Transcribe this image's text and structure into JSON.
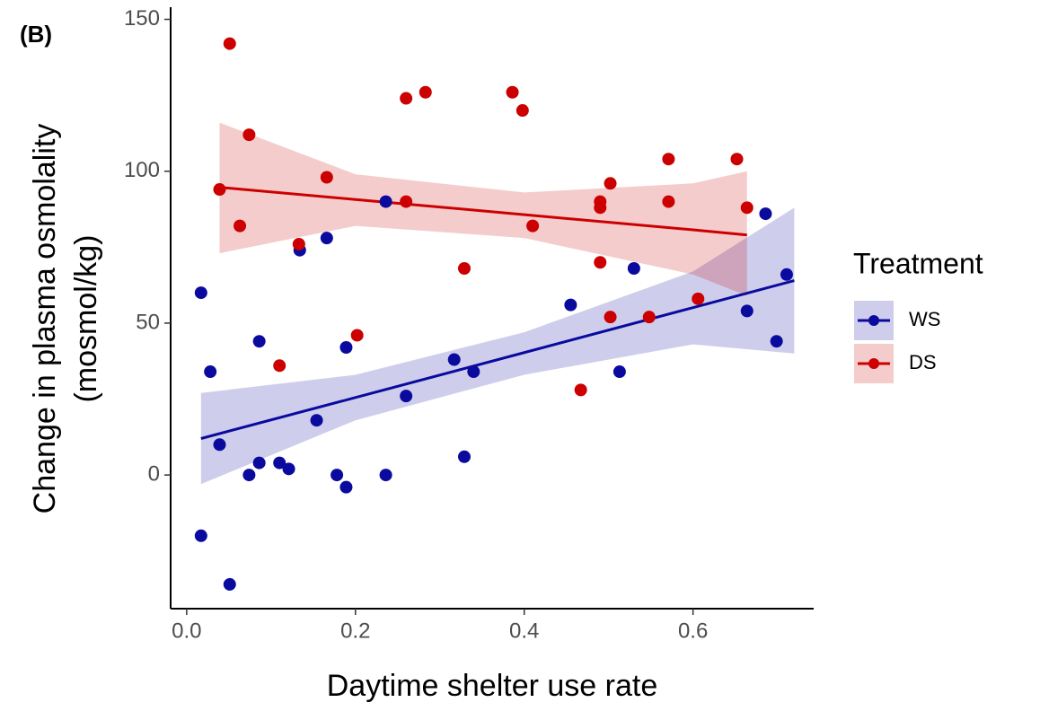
{
  "chart_data": {
    "type": "scatter",
    "panel_label": "(B)",
    "xlabel": "Daytime shelter use rate",
    "ylabel": [
      "Change in plasma osmolality",
      "(mosmol/kg)"
    ],
    "legend_title": "Treatment",
    "legend": "right",
    "xlim": [
      -0.019,
      0.743
    ],
    "ylim": [
      -44,
      154
    ],
    "xticks": [
      {
        "value": 0,
        "label": "0.0"
      },
      0.2,
      0.4,
      0.6
    ],
    "yticks": [
      0,
      50,
      100,
      150
    ],
    "series": [
      {
        "name": "WS",
        "color": "#0a0a9e",
        "x": [
          0.017,
          0.028,
          0.039,
          0.017,
          0.051,
          0.074,
          0.086,
          0.086,
          0.11,
          0.121,
          0.134,
          0.154,
          0.166,
          0.178,
          0.189,
          0.189,
          0.236,
          0.236,
          0.26,
          0.317,
          0.329,
          0.34,
          0.455,
          0.513,
          0.53,
          0.664,
          0.686,
          0.699,
          0.711
        ],
        "values": [
          60,
          34,
          10,
          -20,
          -36,
          0,
          4,
          44,
          4,
          2,
          74,
          18,
          78,
          0,
          -4,
          42,
          0,
          90,
          26,
          38,
          6,
          34,
          56,
          34,
          68,
          54,
          86,
          44,
          66
        ],
        "fit": {
          "x": [
            0.017,
            0.2,
            0.4,
            0.6,
            0.72
          ],
          "values": [
            12,
            25.5,
            40.3,
            55.1,
            64
          ],
          "ci_lower": [
            -3,
            18,
            33,
            43,
            40
          ],
          "ci_upper": [
            27,
            33,
            47,
            67,
            88
          ]
        }
      },
      {
        "name": "DS",
        "color": "#cc0000",
        "x": [
          0.051,
          0.039,
          0.063,
          0.074,
          0.11,
          0.133,
          0.166,
          0.202,
          0.26,
          0.26,
          0.283,
          0.329,
          0.386,
          0.398,
          0.41,
          0.467,
          0.49,
          0.49,
          0.49,
          0.502,
          0.502,
          0.548,
          0.571,
          0.571,
          0.606,
          0.652,
          0.664
        ],
        "values": [
          142,
          94,
          82,
          112,
          36,
          76,
          98,
          46,
          124,
          90,
          126,
          68,
          126,
          120,
          82,
          28,
          90,
          88,
          70,
          96,
          52,
          52,
          104,
          90,
          58,
          104,
          88
        ],
        "fit": {
          "x": [
            0.039,
            0.2,
            0.4,
            0.6,
            0.664
          ],
          "values": [
            94.7,
            90.7,
            85.7,
            80.7,
            79
          ],
          "ci_lower": [
            73,
            82,
            78,
            66,
            59
          ],
          "ci_upper": [
            116,
            99,
            93,
            96,
            100
          ]
        }
      }
    ]
  }
}
